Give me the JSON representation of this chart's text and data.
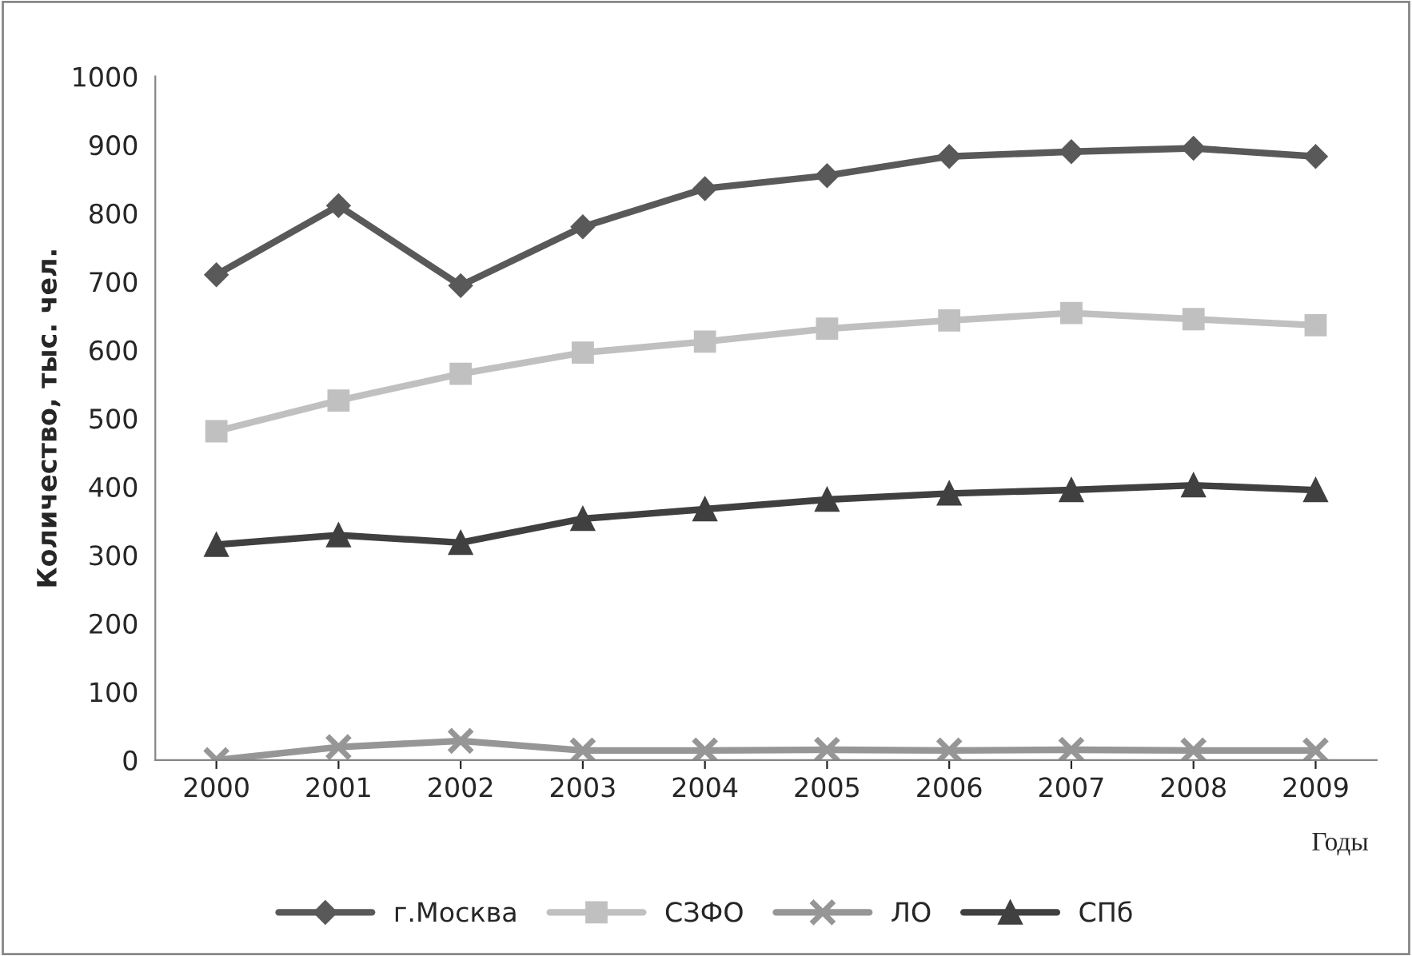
{
  "chart_data": {
    "type": "line",
    "xlabel": "Годы",
    "ylabel": "Количество, тыс. чел.",
    "categories": [
      "2000",
      "2001",
      "2002",
      "2003",
      "2004",
      "2005",
      "2006",
      "2007",
      "2008",
      "2009"
    ],
    "series": [
      {
        "name": "г.Москва",
        "color": "#595959",
        "marker": "diamond",
        "values": [
          710,
          811,
          694,
          780,
          836,
          855,
          883,
          890,
          895,
          883
        ]
      },
      {
        "name": "СЗФО",
        "color": "#c0c0c0",
        "marker": "square",
        "values": [
          481,
          526,
          565,
          596,
          612,
          631,
          643,
          654,
          645,
          636
        ]
      },
      {
        "name": "ЛО",
        "color": "#969696",
        "marker": "cross",
        "values": [
          0,
          19,
          28,
          14,
          14,
          15,
          14,
          15,
          14,
          14
        ]
      },
      {
        "name": "СПб",
        "color": "#404040",
        "marker": "triangle",
        "values": [
          315,
          329,
          318,
          353,
          367,
          381,
          390,
          395,
          402,
          395
        ]
      }
    ],
    "ylim": [
      0,
      1000
    ],
    "yticks": [
      0,
      100,
      200,
      300,
      400,
      500,
      600,
      700,
      800,
      900,
      1000
    ],
    "grid": false,
    "legend": "bottom",
    "line_style": "solid"
  }
}
